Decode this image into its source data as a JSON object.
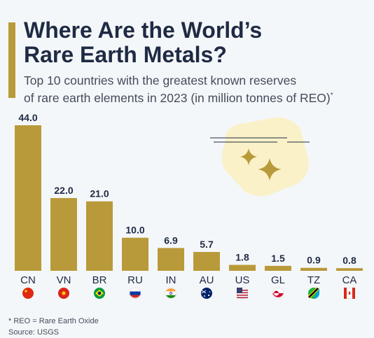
{
  "header": {
    "title_line1": "Where Are the World’s",
    "title_line2": "Rare Earth Metals?",
    "subtitle_line1": "Top 10 countries with the greatest known reserves",
    "subtitle_line2": "of rare earth elements in 2023 (in million tonnes of REO)",
    "subtitle_mark": "*"
  },
  "footer": {
    "note": "* REO = Rare Earth Oxide",
    "source": "Source: USGS"
  },
  "chart_data": {
    "type": "bar",
    "categories": [
      "CN",
      "VN",
      "BR",
      "RU",
      "IN",
      "AU",
      "US",
      "GL",
      "TZ",
      "CA"
    ],
    "values": [
      44.0,
      22.0,
      21.0,
      10.0,
      6.9,
      5.7,
      1.8,
      1.5,
      0.9,
      0.8
    ],
    "value_labels": [
      "44.0",
      "22.0",
      "21.0",
      "10.0",
      "6.9",
      "5.7",
      "1.8",
      "1.5",
      "0.9",
      "0.8"
    ],
    "flags": [
      "china-flag-icon",
      "vietnam-flag-icon",
      "brazil-flag-icon",
      "russia-flag-icon",
      "india-flag-icon",
      "australia-flag-icon",
      "us-flag-icon",
      "greenland-flag-icon",
      "tanzania-flag-icon",
      "canada-flag-icon"
    ],
    "bar_color": "#b99a3a",
    "ylim": [
      0,
      44
    ],
    "title": "",
    "xlabel": "",
    "ylabel": ""
  },
  "colors": {
    "accent": "#b99a3a",
    "background": "#f4f7f9",
    "text": "#1f2a44",
    "sparkle_badge": "#faf1c8"
  }
}
